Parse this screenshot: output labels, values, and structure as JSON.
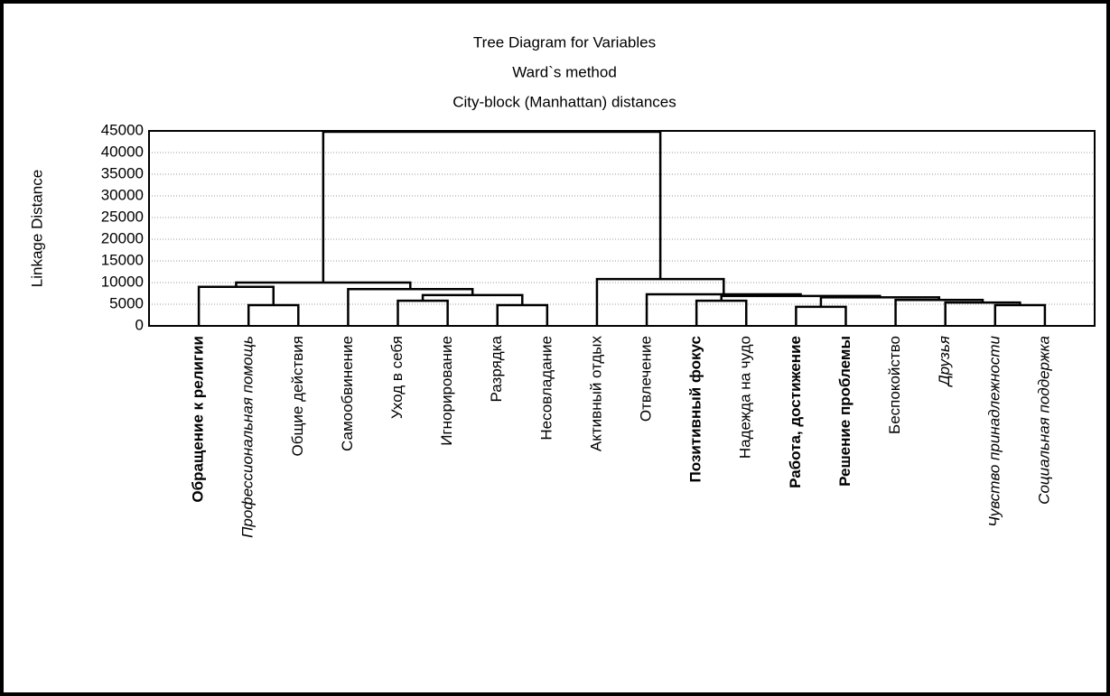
{
  "chart_data": {
    "type": "dendrogram",
    "title": "Tree Diagram for  Variables",
    "subtitle": "Ward`s method",
    "subtitle2": "City-block (Manhattan) distances",
    "ylabel": "Linkage Distance",
    "ylim": [
      0,
      45000
    ],
    "yticks": [
      0,
      5000,
      10000,
      15000,
      20000,
      25000,
      30000,
      35000,
      40000,
      45000
    ],
    "grid": true,
    "color": "#000000",
    "tree": {
      "height": 44800,
      "children": [
        {
          "height": 10000,
          "children": [
            {
              "height": 9000,
              "children": [
                {
                  "label": "Обращение к религии",
                  "style": "bold"
                },
                {
                  "height": 4800,
                  "children": [
                    {
                      "label": "Профессиональная помощь",
                      "style": "italic"
                    },
                    {
                      "label": "Общие действия"
                    }
                  ]
                }
              ]
            },
            {
              "height": 8500,
              "children": [
                {
                  "label": "Самообвинение"
                },
                {
                  "height": 7100,
                  "children": [
                    {
                      "height": 5800,
                      "children": [
                        {
                          "label": "Уход в себя"
                        },
                        {
                          "label": "Игнорирование"
                        }
                      ]
                    },
                    {
                      "height": 4800,
                      "children": [
                        {
                          "label": "Разрядка"
                        },
                        {
                          "label": "Несовладание"
                        }
                      ]
                    }
                  ]
                }
              ]
            }
          ]
        },
        {
          "height": 10800,
          "children": [
            {
              "label": "Активный отдых"
            },
            {
              "height": 7300,
              "children": [
                {
                  "label": "Отвлечение"
                },
                {
                  "height": 6900,
                  "children": [
                    {
                      "height": 5800,
                      "children": [
                        {
                          "label": "Позитивный фокус",
                          "style": "bold"
                        },
                        {
                          "label": "Надежда на чудо"
                        }
                      ]
                    },
                    {
                      "height": 6600,
                      "children": [
                        {
                          "height": 4400,
                          "children": [
                            {
                              "label": "Работа, достижение",
                              "style": "bold"
                            },
                            {
                              "label": "Решение проблемы",
                              "style": "bold"
                            }
                          ]
                        },
                        {
                          "height": 6000,
                          "children": [
                            {
                              "label": "Беспокойство"
                            },
                            {
                              "height": 5400,
                              "children": [
                                {
                                  "label": "Друзья",
                                  "style": "italic"
                                },
                                {
                                  "height": 4800,
                                  "children": [
                                    {
                                      "label": "Чувство принадлежности",
                                      "style": "italic"
                                    },
                                    {
                                      "label": "Социальная поддержка",
                                      "style": "italic"
                                    }
                                  ]
                                }
                              ]
                            }
                          ]
                        }
                      ]
                    }
                  ]
                }
              ]
            }
          ]
        }
      ]
    }
  }
}
